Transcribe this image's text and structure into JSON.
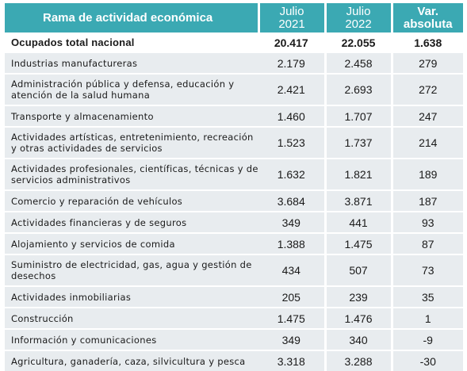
{
  "header": {
    "col_category": "Rama de actividad económica",
    "col_2021_line1": "Julio",
    "col_2021_line2": "2021",
    "col_2022_line1": "Julio",
    "col_2022_line2": "2022",
    "col_var_line1": "Var.",
    "col_var_line2": "absoluta"
  },
  "total": {
    "label": "Ocupados total nacional",
    "v2021": "20.417",
    "v2022": "22.055",
    "var": "1.638"
  },
  "rows": [
    {
      "label": "Industrias manufactureras",
      "v2021": "2.179",
      "v2022": "2.458",
      "var": "279"
    },
    {
      "label": "Administración pública y defensa, educación y atención de la salud humana",
      "v2021": "2.421",
      "v2022": "2.693",
      "var": "272"
    },
    {
      "label": "Transporte y almacenamiento",
      "v2021": "1.460",
      "v2022": "1.707",
      "var": "247"
    },
    {
      "label": "Actividades artísticas, entretenimiento, recreación y otras actividades de servicios",
      "v2021": "1.523",
      "v2022": "1.737",
      "var": "214"
    },
    {
      "label": "Actividades profesionales, científicas, técnicas y de servicios administrativos",
      "v2021": "1.632",
      "v2022": "1.821",
      "var": "189"
    },
    {
      "label": "Comercio y reparación de vehículos",
      "v2021": "3.684",
      "v2022": "3.871",
      "var": "187"
    },
    {
      "label": "Actividades financieras y de seguros",
      "v2021": "349",
      "v2022": "441",
      "var": "93"
    },
    {
      "label": "Alojamiento y servicios de comida",
      "v2021": "1.388",
      "v2022": "1.475",
      "var": "87"
    },
    {
      "label": "Suministro de electricidad, gas, agua y gestión de desechos",
      "v2021": "434",
      "v2022": "507",
      "var": "73"
    },
    {
      "label": "Actividades inmobiliarias",
      "v2021": "205",
      "v2022": "239",
      "var": "35"
    },
    {
      "label": "Construcción",
      "v2021": "1.475",
      "v2022": "1.476",
      "var": "1"
    },
    {
      "label": "Información y comunicaciones",
      "v2021": "349",
      "v2022": "340",
      "var": "-9"
    },
    {
      "label": "Agricultura, ganadería, caza, silvicultura y pesca",
      "v2021": "3.318",
      "v2022": "3.288",
      "var": "-30"
    }
  ],
  "colors": {
    "header_bg": "#3ba9b3",
    "stripe_bg": "#e8ecef"
  }
}
